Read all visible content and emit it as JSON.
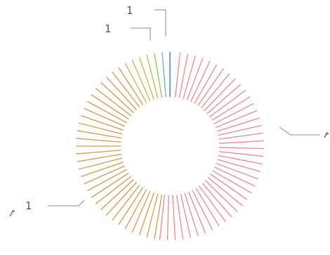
{
  "chart_data": {
    "type": "pie",
    "title": "",
    "total_segments": 76,
    "segment_colors_in_order": [
      {
        "color": "#d98a5e",
        "count": 0
      },
      {
        "color": "#2f6fa6",
        "count": 1
      },
      {
        "color": "#5fbf9a",
        "count": 1
      },
      {
        "color": "#8fc25a",
        "count": 1
      },
      {
        "color": "#c9b34d",
        "count": 4
      },
      {
        "color": "#d39a4a",
        "count": 30
      },
      {
        "color": "#e98a8f",
        "count": 39
      }
    ],
    "callouts": [
      {
        "text": "1",
        "position": "top"
      },
      {
        "text": "1",
        "position": "top-left"
      },
      {
        "text": "1",
        "position": "left"
      },
      {
        "text": "",
        "position": "right"
      }
    ],
    "legend": "none",
    "style": "radial line ring with soft halo"
  },
  "colors": {
    "halo": "#e9f1f5",
    "ring_face": "#ffffff",
    "label_text": "#555555",
    "leader_line": "#8a8a8a"
  }
}
